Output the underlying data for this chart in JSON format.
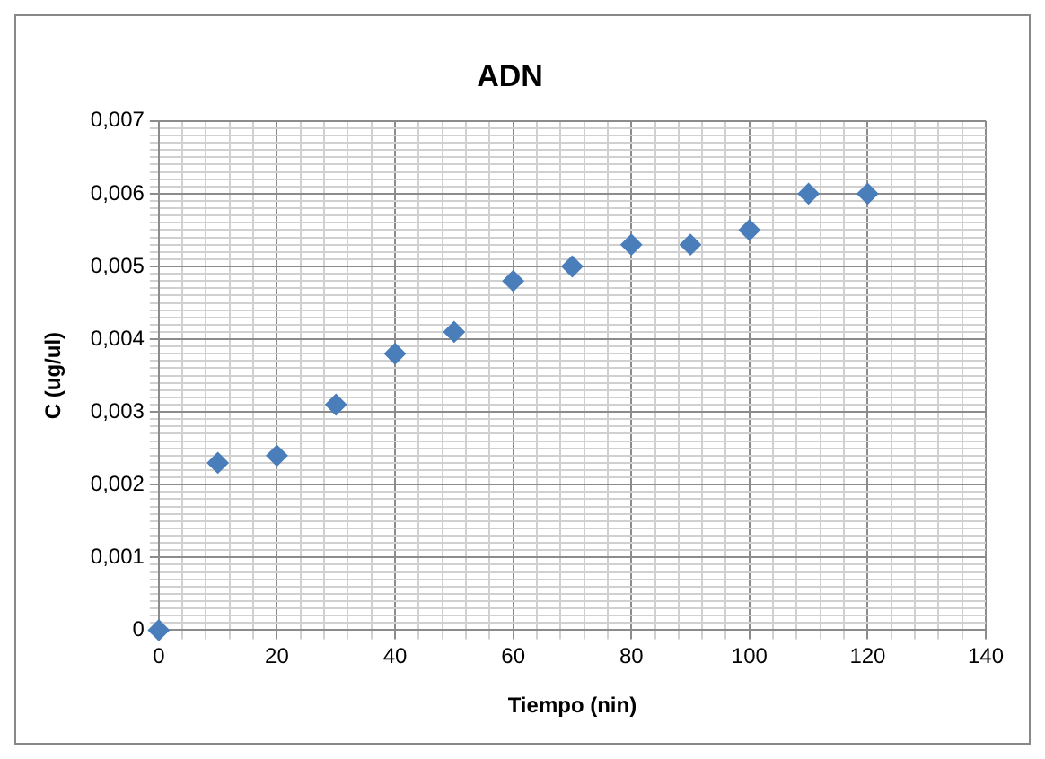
{
  "chart_data": {
    "type": "scatter",
    "title": "ADN",
    "xlabel": "Tiempo (nin)",
    "ylabel": "C (ug/ul)",
    "x": [
      0,
      10,
      20,
      30,
      40,
      50,
      60,
      70,
      80,
      90,
      100,
      110,
      120
    ],
    "series": [
      {
        "color": "#4a7ebb",
        "values": [
          0,
          0.0023,
          0.0024,
          0.0031,
          0.0038,
          0.0041,
          0.0048,
          0.005,
          0.0053,
          0.0053,
          0.0055,
          0.006,
          0.006
        ]
      }
    ],
    "marker": "diamond",
    "grid": true,
    "legend": false,
    "xlim": [
      0,
      140
    ],
    "ylim": [
      0,
      0.007
    ],
    "xticks": [
      0,
      {
        "value": 4,
        "label": null
      },
      {
        "value": 8,
        "label": null
      },
      {
        "value": 12,
        "label": null
      },
      {
        "value": 16,
        "label": null
      },
      20,
      {
        "value": 24,
        "label": null
      },
      {
        "value": 28,
        "label": null
      },
      {
        "value": 32,
        "label": null
      },
      {
        "value": 36,
        "label": null
      },
      40,
      {
        "value": 44,
        "label": null
      },
      {
        "value": 48,
        "label": null
      },
      {
        "value": 52,
        "label": null
      },
      {
        "value": 56,
        "label": null
      },
      60,
      {
        "value": 64,
        "label": null
      },
      {
        "value": 68,
        "label": null
      },
      {
        "value": 72,
        "label": null
      },
      {
        "value": 76,
        "label": null
      },
      80,
      {
        "value": 84,
        "label": null
      },
      {
        "value": 88,
        "label": null
      },
      {
        "value": 92,
        "label": null
      },
      {
        "value": 96,
        "label": null
      },
      100,
      {
        "value": 104,
        "label": null
      },
      {
        "value": 108,
        "label": null
      },
      {
        "value": 112,
        "label": null
      },
      {
        "value": 116,
        "label": null
      },
      120,
      {
        "value": 124,
        "label": null
      },
      {
        "value": 128,
        "label": null
      },
      {
        "value": 132,
        "label": null
      },
      {
        "value": 136,
        "label": null
      },
      140
    ],
    "yticks": [
      0,
      {
        "value": 0.0001,
        "label": null
      },
      {
        "value": 0.0002,
        "label": null
      },
      {
        "value": 0.0003,
        "label": null
      },
      {
        "value": 0.0004,
        "label": null
      },
      {
        "value": 0.0005,
        "label": null
      },
      {
        "value": 0.0006,
        "label": null
      },
      {
        "value": 0.0007,
        "label": null
      },
      {
        "value": 0.0008,
        "label": null
      },
      {
        "value": 0.0009,
        "label": null
      },
      {
        "value": 0.001,
        "label": "0,001"
      },
      {
        "value": 0.0011,
        "label": null
      },
      {
        "value": 0.0012,
        "label": null
      },
      {
        "value": 0.0013,
        "label": null
      },
      {
        "value": 0.0014,
        "label": null
      },
      {
        "value": 0.0015,
        "label": null
      },
      {
        "value": 0.0016,
        "label": null
      },
      {
        "value": 0.0017,
        "label": null
      },
      {
        "value": 0.0018,
        "label": null
      },
      {
        "value": 0.0019,
        "label": null
      },
      {
        "value": 0.002,
        "label": "0,002"
      },
      {
        "value": 0.0021,
        "label": null
      },
      {
        "value": 0.0022,
        "label": null
      },
      {
        "value": 0.0023,
        "label": null
      },
      {
        "value": 0.0024,
        "label": null
      },
      {
        "value": 0.0025,
        "label": null
      },
      {
        "value": 0.0026,
        "label": null
      },
      {
        "value": 0.0027,
        "label": null
      },
      {
        "value": 0.0028,
        "label": null
      },
      {
        "value": 0.0029,
        "label": null
      },
      {
        "value": 0.003,
        "label": "0,003"
      },
      {
        "value": 0.0031,
        "label": null
      },
      {
        "value": 0.0032,
        "label": null
      },
      {
        "value": 0.0033,
        "label": null
      },
      {
        "value": 0.0034,
        "label": null
      },
      {
        "value": 0.0035,
        "label": null
      },
      {
        "value": 0.0036,
        "label": null
      },
      {
        "value": 0.0037,
        "label": null
      },
      {
        "value": 0.0038,
        "label": null
      },
      {
        "value": 0.0039,
        "label": null
      },
      {
        "value": 0.004,
        "label": "0,004"
      },
      {
        "value": 0.0041,
        "label": null
      },
      {
        "value": 0.0042,
        "label": null
      },
      {
        "value": 0.0043,
        "label": null
      },
      {
        "value": 0.0044,
        "label": null
      },
      {
        "value": 0.0045,
        "label": null
      },
      {
        "value": 0.0046,
        "label": null
      },
      {
        "value": 0.0047,
        "label": null
      },
      {
        "value": 0.0048,
        "label": null
      },
      {
        "value": 0.0049,
        "label": null
      },
      {
        "value": 0.005,
        "label": "0,005"
      },
      {
        "value": 0.0051,
        "label": null
      },
      {
        "value": 0.0052,
        "label": null
      },
      {
        "value": 0.0053,
        "label": null
      },
      {
        "value": 0.0054,
        "label": null
      },
      {
        "value": 0.0055,
        "label": null
      },
      {
        "value": 0.0056,
        "label": null
      },
      {
        "value": 0.0057,
        "label": null
      },
      {
        "value": 0.0058,
        "label": null
      },
      {
        "value": 0.0059,
        "label": null
      },
      {
        "value": 0.006,
        "label": "0,006"
      },
      {
        "value": 0.0061,
        "label": null
      },
      {
        "value": 0.0062,
        "label": null
      },
      {
        "value": 0.0063,
        "label": null
      },
      {
        "value": 0.0064,
        "label": null
      },
      {
        "value": 0.0065,
        "label": null
      },
      {
        "value": 0.0066,
        "label": null
      },
      {
        "value": 0.0067,
        "label": null
      },
      {
        "value": 0.0068,
        "label": null
      },
      {
        "value": 0.0069,
        "label": null
      },
      {
        "value": 0.007,
        "label": "0,007"
      }
    ]
  }
}
